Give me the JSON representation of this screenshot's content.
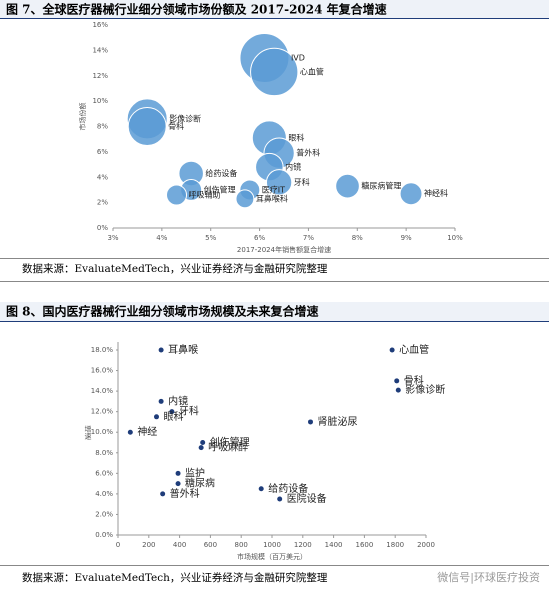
{
  "chart_data": [
    {
      "type": "bubble",
      "title": "图 7、全球医疗器械行业细分领域市场份额及 2017-2024 年复合增速",
      "xlabel": "2017-2024年销售额复合增速",
      "ylabel": "市场份额",
      "labels": [
        "IVD",
        "心血管",
        "影像诊断",
        "骨科",
        "眼科",
        "普外科",
        "内镜",
        "牙科",
        "糖尿病管理",
        "神经科",
        "给药设备",
        "创伤管理",
        "呼吸辅助",
        "医疗IT",
        "耳鼻喉科"
      ],
      "x": [
        6.1,
        6.3,
        3.7,
        3.7,
        6.2,
        6.4,
        6.2,
        6.4,
        7.8,
        9.1,
        4.6,
        4.6,
        4.3,
        5.8,
        5.7
      ],
      "values": [
        13.4,
        12.3,
        8.6,
        8.0,
        7.1,
        5.9,
        4.8,
        3.6,
        3.3,
        2.7,
        4.3,
        3.0,
        2.6,
        3.0,
        2.3
      ],
      "sizes": [
        600,
        560,
        400,
        360,
        290,
        230,
        190,
        160,
        140,
        120,
        150,
        110,
        100,
        100,
        80
      ],
      "color": "#5b9bd5",
      "xlim": [
        3,
        10
      ],
      "xticks": [
        {
          "value": 3,
          "label": "3%"
        },
        {
          "value": 4,
          "label": "4%"
        },
        {
          "value": 5,
          "label": "5%"
        },
        {
          "value": 6,
          "label": "6%"
        },
        {
          "value": 7,
          "label": "7%"
        },
        {
          "value": 8,
          "label": "8%"
        },
        {
          "value": 9,
          "label": "9%"
        },
        {
          "value": 10,
          "label": "10%"
        }
      ],
      "ylim": [
        0,
        16
      ],
      "yticks": [
        {
          "value": 0,
          "label": "0%"
        },
        {
          "value": 2,
          "label": "2%"
        },
        {
          "value": 4,
          "label": "4%"
        },
        {
          "value": 6,
          "label": "6%"
        },
        {
          "value": 8,
          "label": "8%"
        },
        {
          "value": 10,
          "label": "10%"
        },
        {
          "value": 12,
          "label": "12%"
        },
        {
          "value": 14,
          "label": "14%"
        },
        {
          "value": 16,
          "label": "16%"
        }
      ],
      "source": "数据来源：EvaluateMedTech，兴业证券经济与金融研究院整理"
    },
    {
      "type": "scatter",
      "title": "图 8、国内医疗器械行业细分领域市场规模及未来复合增速",
      "xlabel": "市场规模（百万美元）",
      "ylabel": "增速",
      "labels": [
        "耳鼻喉",
        "心血管",
        "骨科",
        "影像诊断",
        "内镜",
        "牙科",
        "眼科",
        "神经",
        "肾脏泌尿",
        "创伤管理",
        "呼吸麻醉",
        "监护",
        "糖尿病",
        "普外科",
        "给药设备",
        "医院设备"
      ],
      "x": [
        280,
        1780,
        1810,
        1820,
        280,
        350,
        250,
        80,
        1250,
        550,
        540,
        390,
        390,
        290,
        930,
        1050
      ],
      "values": [
        18.0,
        18.0,
        15.0,
        14.1,
        13.0,
        12.0,
        11.5,
        10.0,
        11.0,
        9.0,
        8.5,
        6.0,
        5.0,
        4.0,
        4.5,
        3.5
      ],
      "color": "#1f3d7a",
      "xlim": [
        0,
        2000
      ],
      "xticks": [
        0,
        200,
        400,
        600,
        800,
        1000,
        1200,
        1400,
        1600,
        1800,
        2000
      ],
      "ylim": [
        0,
        18
      ],
      "yticks": [
        {
          "value": 0,
          "label": "0.0%"
        },
        {
          "value": 2,
          "label": "2.0%"
        },
        {
          "value": 4,
          "label": "4.0%"
        },
        {
          "value": 6,
          "label": "6.0%"
        },
        {
          "value": 8,
          "label": "8.0%"
        },
        {
          "value": 10,
          "label": "10.0%"
        },
        {
          "value": 12,
          "label": "12.0%"
        },
        {
          "value": 14,
          "label": "14.0%"
        },
        {
          "value": 16,
          "label": "16.0%"
        },
        {
          "value": 18,
          "label": "18.0%"
        }
      ],
      "source": "数据来源：EvaluateMedTech，兴业证券经济与金融研究院整理"
    }
  ],
  "watermark": "微信号|环球医疗投资"
}
